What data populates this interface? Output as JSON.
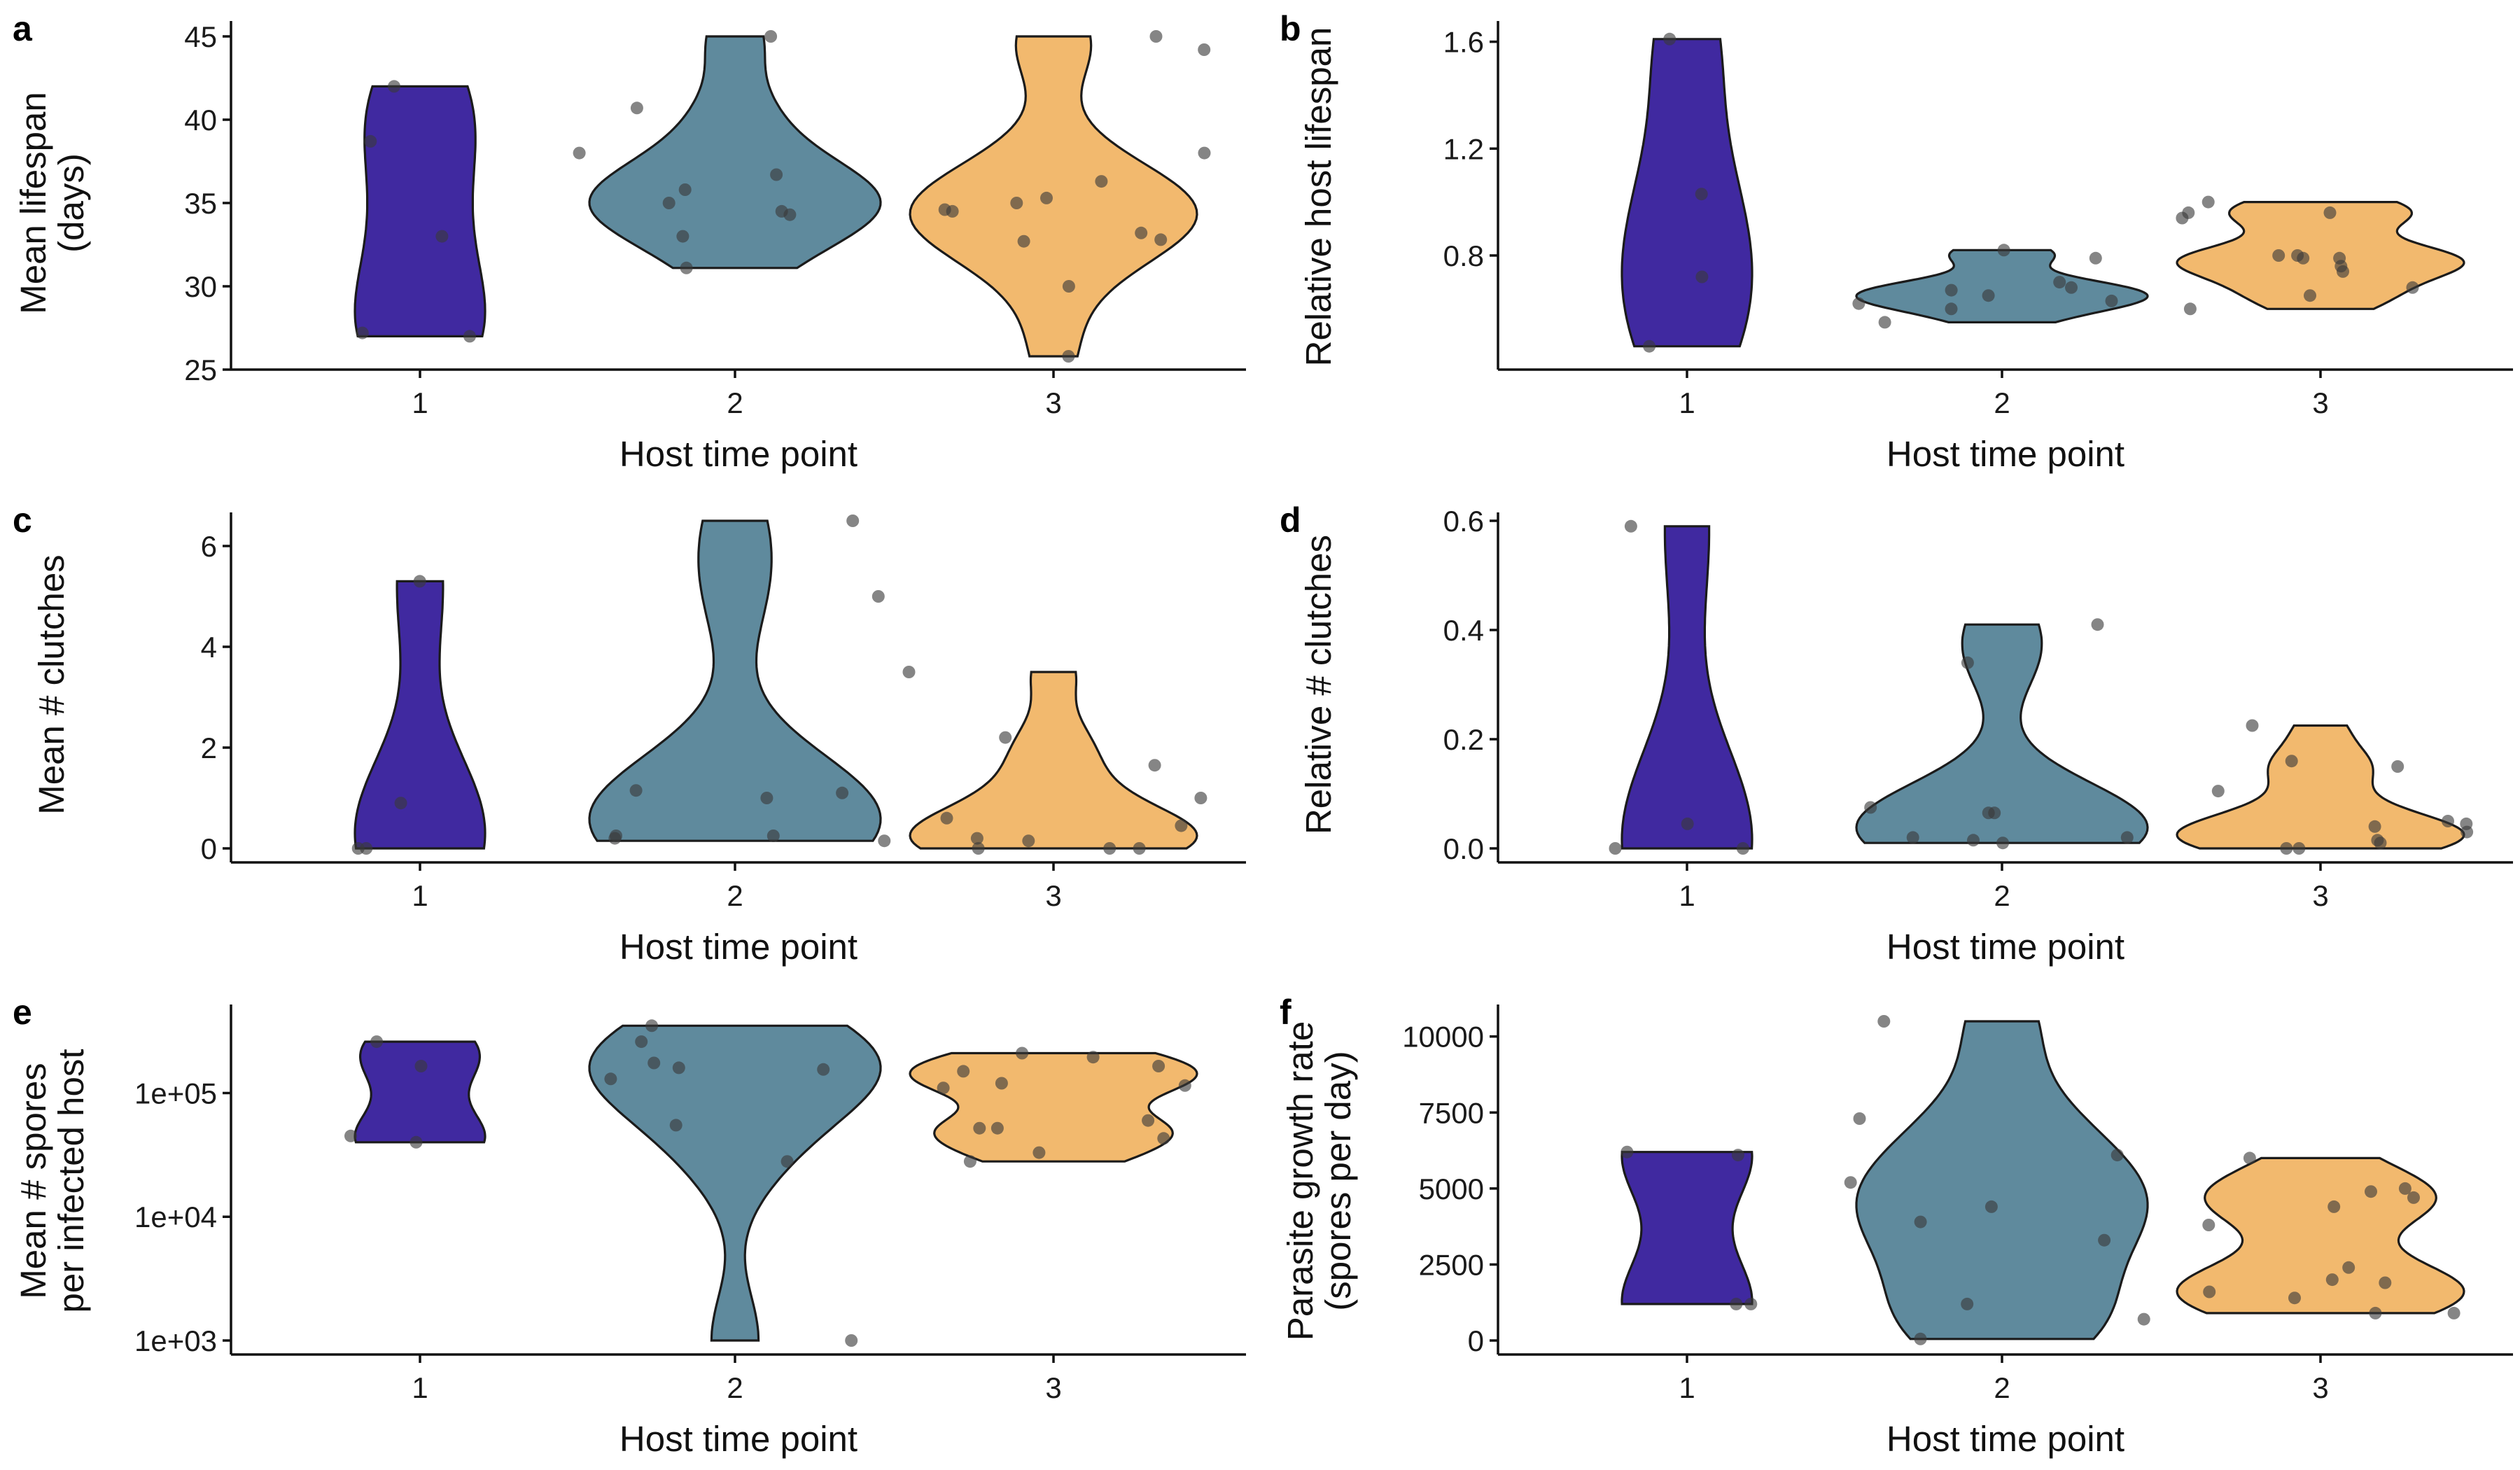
{
  "colors": {
    "tp1": "#4029A0",
    "tp2": "#5F8A9D",
    "tp3": "#F2B96E"
  },
  "chart_data": [
    {
      "panel": "a",
      "type": "violin",
      "ylabel": [
        "Mean lifespan",
        "(days)"
      ],
      "xlabel": "Host time point",
      "categories": [
        "1",
        "2",
        "3"
      ],
      "ylim": [
        25,
        45
      ],
      "yticks": [
        25,
        30,
        35,
        40,
        45
      ],
      "ytick_labels": [
        "25",
        "30",
        "35",
        "40",
        "45"
      ],
      "scale": "linear",
      "series": [
        {
          "values": [
            27,
            27.2,
            33,
            38.7,
            42
          ]
        },
        {
          "values": [
            31.1,
            33,
            34.3,
            34.5,
            35,
            35.8,
            36.7,
            38,
            40.7,
            45
          ]
        },
        {
          "values": [
            25.8,
            30,
            32.7,
            32.8,
            33.2,
            34.5,
            34.6,
            35,
            35.3,
            36.3,
            38,
            44.2,
            45
          ]
        }
      ]
    },
    {
      "panel": "b",
      "type": "violin",
      "ylabel": [
        "Relative host lifespan"
      ],
      "xlabel": "Host time point",
      "categories": [
        "1",
        "2",
        "3"
      ],
      "ylim": [
        0.42,
        1.62
      ],
      "yticks": [
        0.8,
        1.2,
        1.6
      ],
      "ytick_labels": [
        "0.8",
        "1.2",
        "1.6"
      ],
      "scale": "linear",
      "series": [
        {
          "values": [
            0.46,
            0.72,
            1.03,
            1.61
          ]
        },
        {
          "values": [
            0.55,
            0.6,
            0.62,
            0.63,
            0.65,
            0.67,
            0.68,
            0.7,
            0.79,
            0.82
          ]
        },
        {
          "values": [
            0.6,
            0.65,
            0.68,
            0.74,
            0.76,
            0.79,
            0.79,
            0.8,
            0.8,
            0.94,
            0.96,
            0.96,
            1.0
          ]
        }
      ]
    },
    {
      "panel": "c",
      "type": "violin",
      "ylabel": [
        "Mean # clutches"
      ],
      "xlabel": "Host time point",
      "categories": [
        "1",
        "2",
        "3"
      ],
      "ylim": [
        0,
        6.5
      ],
      "yticks": [
        0,
        2,
        4,
        6
      ],
      "ytick_labels": [
        "0",
        "2",
        "4",
        "6"
      ],
      "scale": "linear",
      "series": [
        {
          "values": [
            0,
            0,
            0.9,
            5.3
          ]
        },
        {
          "values": [
            0.15,
            0.2,
            0.25,
            0.25,
            1,
            1.1,
            1.15,
            5,
            6.5
          ]
        },
        {
          "values": [
            0,
            0,
            0,
            0.15,
            0.2,
            0.45,
            0.6,
            1,
            1.65,
            2.2,
            3.5
          ]
        }
      ]
    },
    {
      "panel": "d",
      "type": "violin",
      "ylabel": [
        "Relative # clutches"
      ],
      "xlabel": "Host time point",
      "categories": [
        "1",
        "2",
        "3"
      ],
      "ylim": [
        0,
        0.6
      ],
      "yticks": [
        0,
        0.2,
        0.4,
        0.6
      ],
      "ytick_labels": [
        "0.0",
        "0.2",
        "0.4",
        "0.6"
      ],
      "scale": "linear",
      "series": [
        {
          "values": [
            0,
            0,
            0.045,
            0.59
          ]
        },
        {
          "values": [
            0.01,
            0.015,
            0.02,
            0.02,
            0.065,
            0.065,
            0.075,
            0.34,
            0.41
          ]
        },
        {
          "values": [
            0,
            0,
            0.01,
            0.015,
            0.03,
            0.04,
            0.045,
            0.05,
            0.105,
            0.15,
            0.16,
            0.225
          ]
        }
      ]
    },
    {
      "panel": "e",
      "type": "violin",
      "ylabel": [
        "Mean # spores",
        "per infected host"
      ],
      "xlabel": "Host time point",
      "categories": [
        "1",
        "2",
        "3"
      ],
      "ylim": [
        1000,
        380000
      ],
      "yticks": [
        1000,
        10000,
        100000
      ],
      "ytick_labels": [
        "1e+03",
        "1e+04",
        "1e+05"
      ],
      "scale": "log",
      "series": [
        {
          "values": [
            40000,
            45000,
            165000,
            260000
          ]
        },
        {
          "values": [
            1000,
            28000,
            55000,
            130000,
            155000,
            160000,
            175000,
            260000,
            350000
          ]
        },
        {
          "values": [
            28000,
            33000,
            43000,
            52000,
            52000,
            60000,
            110000,
            115000,
            120000,
            150000,
            165000,
            195000,
            210000
          ]
        }
      ]
    },
    {
      "panel": "f",
      "type": "violin",
      "ylabel": [
        "Parasite growth rate",
        "(spores per day)"
      ],
      "xlabel": "Host time point",
      "categories": [
        "1",
        "2",
        "3"
      ],
      "ylim": [
        0,
        10500
      ],
      "yticks": [
        0,
        2500,
        5000,
        7500,
        10000
      ],
      "ytick_labels": [
        "0",
        "2500",
        "5000",
        "7500",
        "10000"
      ],
      "scale": "linear",
      "series": [
        {
          "values": [
            1200,
            1200,
            6100,
            6200
          ]
        },
        {
          "values": [
            50,
            700,
            1200,
            3300,
            3900,
            4400,
            5200,
            6100,
            7300,
            10500
          ]
        },
        {
          "values": [
            900,
            900,
            1400,
            1600,
            1900,
            2000,
            2400,
            3800,
            4400,
            4700,
            4900,
            5000,
            6000
          ]
        }
      ]
    }
  ]
}
